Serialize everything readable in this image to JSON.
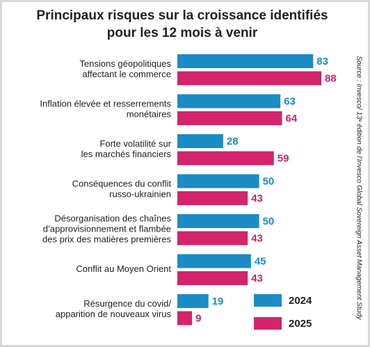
{
  "chart_data": {
    "type": "bar",
    "orientation": "horizontal",
    "title": [
      "Principaux risques sur la croissance identifiés",
      "pour les 12 mois à venir"
    ],
    "categories": [
      [
        "Tensions géopolitiques",
        "affectant le commerce"
      ],
      [
        "Inflation élevée et resserrements",
        "monétaires"
      ],
      [
        "Forte volatilité sur",
        "les marchés financiers"
      ],
      [
        "Conséquences du conflit",
        "russo-ukrainien"
      ],
      [
        "Désorganisation des chaînes",
        "d’approvisionnement et flambée",
        "des prix des matières premières"
      ],
      [
        "Conflit au Moyen Orient"
      ],
      [
        "Résurgence du covid/",
        "apparition de nouveaux virus"
      ]
    ],
    "series": [
      {
        "name": "2024",
        "color": "#1b8cc6",
        "values": [
          83,
          63,
          28,
          50,
          50,
          45,
          19
        ]
      },
      {
        "name": "2025",
        "color": "#d3246c",
        "values": [
          88,
          64,
          59,
          43,
          43,
          43,
          9
        ]
      }
    ],
    "legend": "lower right",
    "source": "Source : Invesco/ 13ᵉ édition de l’Invesco Global Sovereign Asset Management Study"
  }
}
